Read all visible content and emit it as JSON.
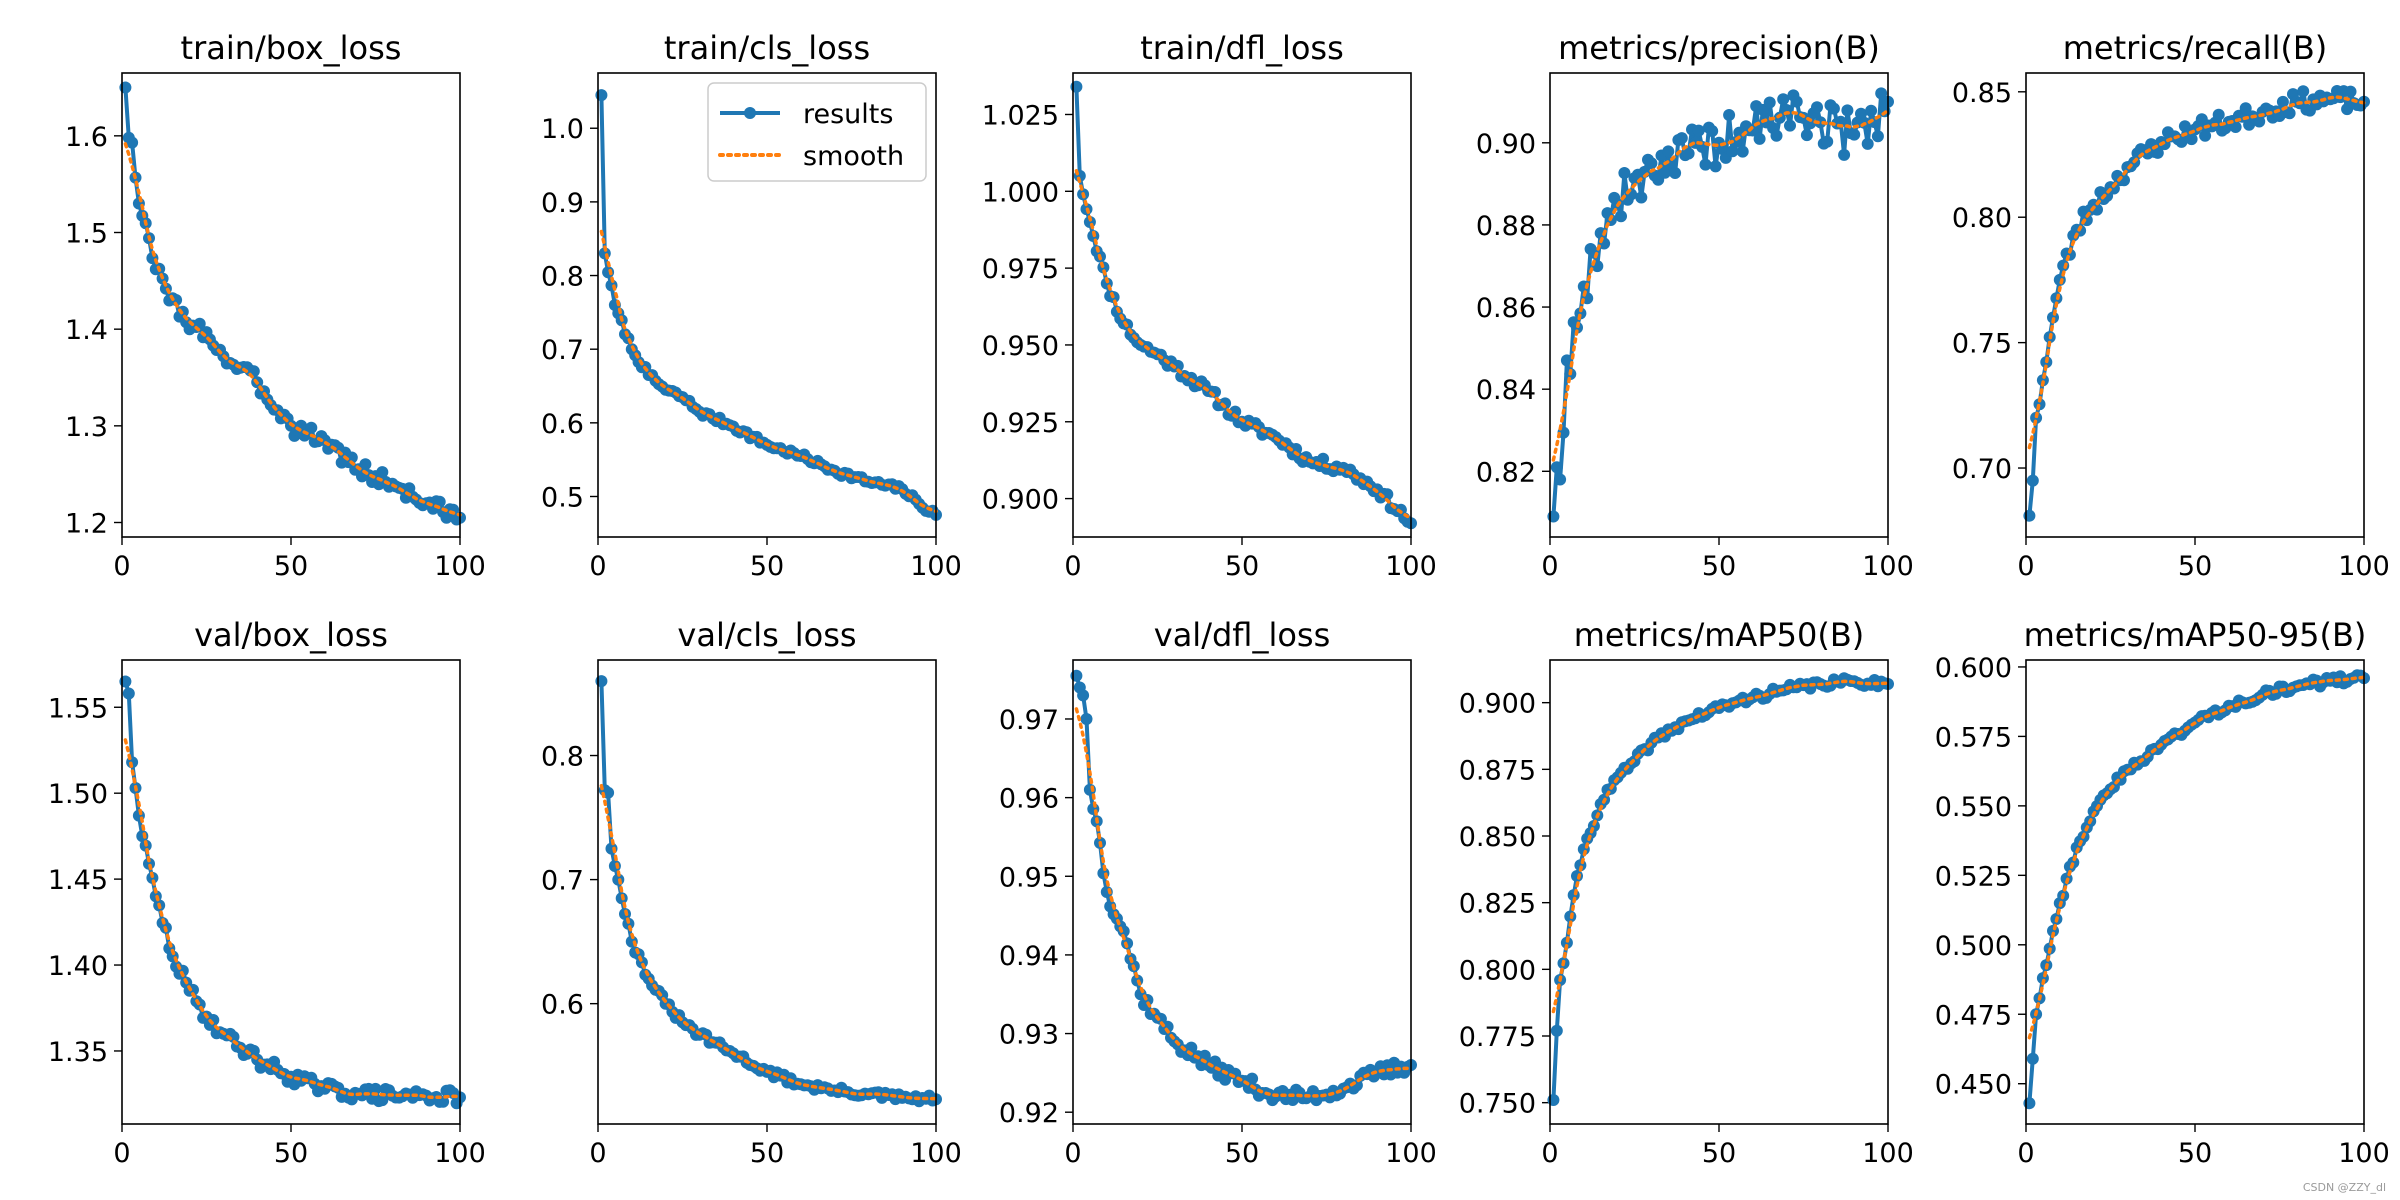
{
  "watermark": "CSDN @ZZY_dl",
  "series_colors": {
    "results": "#1f77b4",
    "smooth": "#ff7f0e"
  },
  "legend_labels": {
    "results": "results",
    "smooth": "smooth"
  },
  "chart_data": [
    {
      "type": "line",
      "title": "train/box_loss",
      "xlim": [
        0,
        100
      ],
      "ylim": [
        1.185,
        1.665
      ],
      "yticks": [
        1.2,
        1.3,
        1.4,
        1.5,
        1.6
      ],
      "ytick_labels": [
        "1.2",
        "1.3",
        "1.4",
        "1.5",
        "1.6"
      ],
      "xticks": [
        0,
        50,
        100
      ],
      "xtick_labels": [
        "0",
        "50",
        "100"
      ],
      "legend": false,
      "series": [
        {
          "name": "results",
          "anchors": [
            [
              1,
              1.65
            ],
            [
              2,
              1.598
            ],
            [
              3,
              1.593
            ],
            [
              5,
              1.53
            ],
            [
              10,
              1.462
            ],
            [
              15,
              1.432
            ],
            [
              20,
              1.4
            ],
            [
              25,
              1.397
            ],
            [
              30,
              1.372
            ],
            [
              40,
              1.345
            ],
            [
              50,
              1.3
            ],
            [
              60,
              1.285
            ],
            [
              70,
              1.255
            ],
            [
              80,
              1.24
            ],
            [
              90,
              1.22
            ],
            [
              100,
              1.205
            ]
          ],
          "jitter": 0.009,
          "seed": 3
        }
      ]
    },
    {
      "type": "line",
      "title": "train/cls_loss",
      "xlim": [
        0,
        100
      ],
      "ylim": [
        0.445,
        1.075
      ],
      "yticks": [
        0.5,
        0.6,
        0.7,
        0.8,
        0.9,
        1.0
      ],
      "ytick_labels": [
        "0.5",
        "0.6",
        "0.7",
        "0.8",
        "0.9",
        "1.0"
      ],
      "xticks": [
        0,
        50,
        100
      ],
      "xtick_labels": [
        "0",
        "50",
        "100"
      ],
      "legend": true,
      "series": [
        {
          "name": "results",
          "anchors": [
            [
              1,
              1.045
            ],
            [
              2,
              0.83
            ],
            [
              5,
              0.76
            ],
            [
              10,
              0.7
            ],
            [
              15,
              0.665
            ],
            [
              20,
              0.645
            ],
            [
              25,
              0.635
            ],
            [
              30,
              0.615
            ],
            [
              40,
              0.595
            ],
            [
              50,
              0.57
            ],
            [
              60,
              0.555
            ],
            [
              70,
              0.535
            ],
            [
              80,
              0.52
            ],
            [
              90,
              0.51
            ],
            [
              95,
              0.49
            ],
            [
              100,
              0.475
            ]
          ],
          "jitter": 0.004,
          "seed": 7
        }
      ]
    },
    {
      "type": "line",
      "title": "train/dfl_loss",
      "xlim": [
        0,
        100
      ],
      "ylim": [
        0.8875,
        1.0385
      ],
      "yticks": [
        0.9,
        0.925,
        0.95,
        0.975,
        1.0,
        1.025
      ],
      "ytick_labels": [
        "0.900",
        "0.925",
        "0.950",
        "0.975",
        "1.000",
        "1.025"
      ],
      "xticks": [
        0,
        50,
        100
      ],
      "xtick_labels": [
        "0",
        "50",
        "100"
      ],
      "legend": false,
      "series": [
        {
          "name": "results",
          "anchors": [
            [
              1,
              1.034
            ],
            [
              2,
              1.005
            ],
            [
              5,
              0.99
            ],
            [
              10,
              0.97
            ],
            [
              15,
              0.957
            ],
            [
              20,
              0.95
            ],
            [
              25,
              0.947
            ],
            [
              30,
              0.943
            ],
            [
              40,
              0.935
            ],
            [
              50,
              0.925
            ],
            [
              60,
              0.92
            ],
            [
              70,
              0.912
            ],
            [
              80,
              0.91
            ],
            [
              90,
              0.903
            ],
            [
              100,
              0.892
            ]
          ],
          "jitter": 0.0018,
          "seed": 11
        }
      ]
    },
    {
      "type": "line",
      "title": "metrics/precision(B)",
      "xlim": [
        0,
        100
      ],
      "ylim": [
        0.804,
        0.917
      ],
      "yticks": [
        0.82,
        0.84,
        0.86,
        0.88,
        0.9
      ],
      "ytick_labels": [
        "0.82",
        "0.84",
        "0.86",
        "0.88",
        "0.90"
      ],
      "xticks": [
        0,
        50,
        100
      ],
      "xtick_labels": [
        "0",
        "50",
        "100"
      ],
      "legend": false,
      "series": [
        {
          "name": "results",
          "anchors": [
            [
              1,
              0.809
            ],
            [
              2,
              0.821
            ],
            [
              3,
              0.818
            ],
            [
              5,
              0.847
            ],
            [
              8,
              0.855
            ],
            [
              10,
              0.865
            ],
            [
              15,
              0.878
            ],
            [
              20,
              0.885
            ],
            [
              30,
              0.895
            ],
            [
              40,
              0.897
            ],
            [
              50,
              0.9
            ],
            [
              60,
              0.903
            ],
            [
              70,
              0.908
            ],
            [
              80,
              0.905
            ],
            [
              90,
              0.902
            ],
            [
              100,
              0.91
            ]
          ],
          "jitter": 0.006,
          "seed": 19
        }
      ]
    },
    {
      "type": "line",
      "title": "metrics/recall(B)",
      "xlim": [
        0,
        100
      ],
      "ylim": [
        0.6725,
        0.8575
      ],
      "yticks": [
        0.7,
        0.75,
        0.8,
        0.85
      ],
      "ytick_labels": [
        "0.70",
        "0.75",
        "0.80",
        "0.85"
      ],
      "xticks": [
        0,
        50,
        100
      ],
      "xtick_labels": [
        "0",
        "50",
        "100"
      ],
      "legend": false,
      "series": [
        {
          "name": "results",
          "anchors": [
            [
              1,
              0.681
            ],
            [
              2,
              0.695
            ],
            [
              3,
              0.72
            ],
            [
              5,
              0.735
            ],
            [
              8,
              0.76
            ],
            [
              10,
              0.775
            ],
            [
              15,
              0.795
            ],
            [
              20,
              0.805
            ],
            [
              25,
              0.812
            ],
            [
              30,
              0.82
            ],
            [
              40,
              0.83
            ],
            [
              50,
              0.835
            ],
            [
              60,
              0.838
            ],
            [
              70,
              0.842
            ],
            [
              80,
              0.846
            ],
            [
              90,
              0.847
            ],
            [
              100,
              0.846
            ]
          ],
          "jitter": 0.004,
          "seed": 23
        }
      ]
    },
    {
      "type": "line",
      "title": "val/box_loss",
      "xlim": [
        0,
        100
      ],
      "ylim": [
        1.3075,
        1.5775
      ],
      "yticks": [
        1.35,
        1.4,
        1.45,
        1.5,
        1.55
      ],
      "ytick_labels": [
        "1.35",
        "1.40",
        "1.45",
        "1.50",
        "1.55"
      ],
      "xticks": [
        0,
        50,
        100
      ],
      "xtick_labels": [
        "0",
        "50",
        "100"
      ],
      "legend": false,
      "series": [
        {
          "name": "results",
          "anchors": [
            [
              1,
              1.565
            ],
            [
              2,
              1.558
            ],
            [
              3,
              1.518
            ],
            [
              4,
              1.503
            ],
            [
              6,
              1.475
            ],
            [
              10,
              1.44
            ],
            [
              15,
              1.405
            ],
            [
              20,
              1.385
            ],
            [
              25,
              1.37
            ],
            [
              30,
              1.36
            ],
            [
              40,
              1.345
            ],
            [
              50,
              1.335
            ],
            [
              60,
              1.328
            ],
            [
              70,
              1.325
            ],
            [
              80,
              1.324
            ],
            [
              90,
              1.324
            ],
            [
              100,
              1.323
            ]
          ],
          "jitter": 0.004,
          "seed": 29
        }
      ]
    },
    {
      "type": "line",
      "title": "val/cls_loss",
      "xlim": [
        0,
        100
      ],
      "ylim": [
        0.503,
        0.877
      ],
      "yticks": [
        0.6,
        0.7,
        0.8
      ],
      "ytick_labels": [
        "0.6",
        "0.7",
        "0.8"
      ],
      "xticks": [
        0,
        50,
        100
      ],
      "xtick_labels": [
        "0",
        "50",
        "100"
      ],
      "legend": false,
      "series": [
        {
          "name": "results",
          "anchors": [
            [
              1,
              0.86
            ],
            [
              2,
              0.772
            ],
            [
              3,
              0.77
            ],
            [
              4,
              0.725
            ],
            [
              6,
              0.7
            ],
            [
              10,
              0.65
            ],
            [
              15,
              0.62
            ],
            [
              20,
              0.6
            ],
            [
              25,
              0.585
            ],
            [
              30,
              0.575
            ],
            [
              40,
              0.56
            ],
            [
              50,
              0.545
            ],
            [
              60,
              0.535
            ],
            [
              70,
              0.53
            ],
            [
              80,
              0.527
            ],
            [
              90,
              0.524
            ],
            [
              100,
              0.523
            ]
          ],
          "jitter": 0.003,
          "seed": 31
        }
      ]
    },
    {
      "type": "line",
      "title": "val/dfl_loss",
      "xlim": [
        0,
        100
      ],
      "ylim": [
        0.9185,
        0.9775
      ],
      "yticks": [
        0.92,
        0.93,
        0.94,
        0.95,
        0.96,
        0.97
      ],
      "ytick_labels": [
        "0.92",
        "0.93",
        "0.94",
        "0.95",
        "0.96",
        "0.97"
      ],
      "xticks": [
        0,
        50,
        100
      ],
      "xtick_labels": [
        "0",
        "50",
        "100"
      ],
      "legend": false,
      "series": [
        {
          "name": "results",
          "anchors": [
            [
              1,
              0.9755
            ],
            [
              2,
              0.974
            ],
            [
              3,
              0.973
            ],
            [
              4,
              0.97
            ],
            [
              5,
              0.961
            ],
            [
              7,
              0.957
            ],
            [
              10,
              0.948
            ],
            [
              15,
              0.943
            ],
            [
              20,
              0.935
            ],
            [
              25,
              0.932
            ],
            [
              30,
              0.929
            ],
            [
              40,
              0.926
            ],
            [
              50,
              0.924
            ],
            [
              60,
              0.922
            ],
            [
              70,
              0.922
            ],
            [
              80,
              0.923
            ],
            [
              90,
              0.925
            ],
            [
              100,
              0.926
            ]
          ],
          "jitter": 0.0009,
          "seed": 37
        }
      ]
    },
    {
      "type": "line",
      "title": "metrics/mAP50(B)",
      "xlim": [
        0,
        100
      ],
      "ylim": [
        0.742,
        0.916
      ],
      "yticks": [
        0.75,
        0.775,
        0.8,
        0.825,
        0.85,
        0.875,
        0.9
      ],
      "ytick_labels": [
        "0.750",
        "0.775",
        "0.800",
        "0.825",
        "0.850",
        "0.875",
        "0.900"
      ],
      "xticks": [
        0,
        50,
        100
      ],
      "xtick_labels": [
        "0",
        "50",
        "100"
      ],
      "legend": false,
      "series": [
        {
          "name": "results",
          "anchors": [
            [
              1,
              0.751
            ],
            [
              2,
              0.777
            ],
            [
              3,
              0.796
            ],
            [
              5,
              0.81
            ],
            [
              8,
              0.835
            ],
            [
              10,
              0.845
            ],
            [
              15,
              0.862
            ],
            [
              20,
              0.872
            ],
            [
              25,
              0.878
            ],
            [
              30,
              0.885
            ],
            [
              40,
              0.893
            ],
            [
              50,
              0.898
            ],
            [
              60,
              0.902
            ],
            [
              70,
              0.905
            ],
            [
              80,
              0.907
            ],
            [
              90,
              0.908
            ],
            [
              100,
              0.907
            ]
          ],
          "jitter": 0.0015,
          "seed": 41
        }
      ]
    },
    {
      "type": "line",
      "title": "metrics/mAP50-95(B)",
      "xlim": [
        0,
        100
      ],
      "ylim": [
        0.4355,
        0.6025
      ],
      "yticks": [
        0.45,
        0.475,
        0.5,
        0.525,
        0.55,
        0.575,
        0.6
      ],
      "ytick_labels": [
        "0.450",
        "0.475",
        "0.500",
        "0.525",
        "0.550",
        "0.575",
        "0.600"
      ],
      "xticks": [
        0,
        50,
        100
      ],
      "xtick_labels": [
        "0",
        "50",
        "100"
      ],
      "legend": false,
      "series": [
        {
          "name": "results",
          "anchors": [
            [
              1,
              0.443
            ],
            [
              2,
              0.459
            ],
            [
              3,
              0.475
            ],
            [
              5,
              0.488
            ],
            [
              8,
              0.505
            ],
            [
              10,
              0.515
            ],
            [
              15,
              0.535
            ],
            [
              20,
              0.548
            ],
            [
              25,
              0.556
            ],
            [
              30,
              0.563
            ],
            [
              40,
              0.572
            ],
            [
              50,
              0.58
            ],
            [
              60,
              0.586
            ],
            [
              70,
              0.59
            ],
            [
              80,
              0.593
            ],
            [
              90,
              0.595
            ],
            [
              100,
              0.596
            ]
          ],
          "jitter": 0.0015,
          "seed": 43
        }
      ]
    }
  ]
}
